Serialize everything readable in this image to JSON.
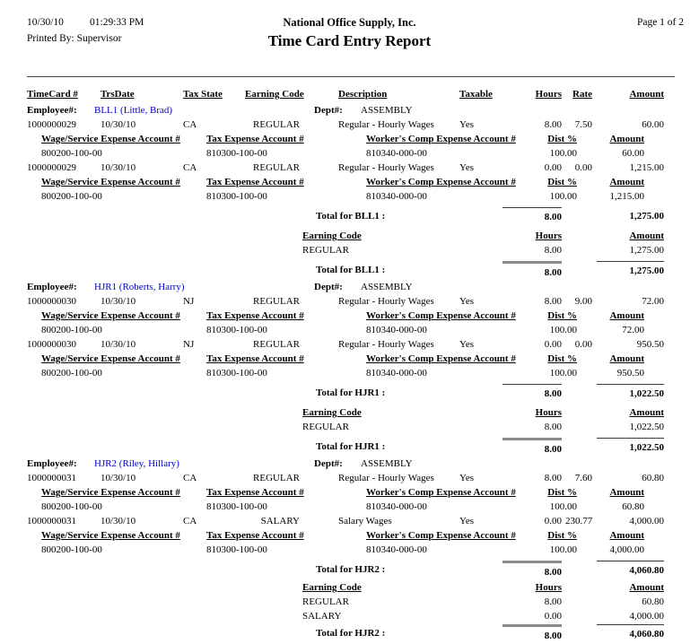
{
  "page": {
    "date": "10/30/10",
    "time": "01:29:33 PM",
    "printed_by": "Printed By: Supervisor",
    "company": "National Office Supply, Inc.",
    "title": "Time Card Entry Report",
    "page_label": "Page 1 of 2"
  },
  "colors": {
    "link_blue": "#0000cc",
    "thick_rule_gray": "#8c8c8c"
  },
  "table": {
    "employee_label": "Employee#:",
    "dept_label": "Dept#:",
    "columns": {
      "timecard": "TimeCard #",
      "trsdate": "TrsDate",
      "tax_state": "Tax State",
      "earning_code": "Earning Code",
      "description": "Description",
      "taxable": "Taxable",
      "hours": "Hours",
      "rate": "Rate",
      "amount": "Amount"
    },
    "sub_columns": {
      "wage": "Wage/Service Expense Account #",
      "tax": "Tax Expense Account #",
      "comp": "Worker's Comp Expense Account #",
      "dist": "Dist %",
      "amount": "Amount"
    },
    "summary_columns": {
      "earning_code": "Earning Code",
      "hours": "Hours",
      "amount": "Amount"
    }
  },
  "employees": [
    {
      "code": "BLL1 (Little, Brad)",
      "dept": "ASSEMBLY",
      "entries": [
        {
          "timecard": "1000000029",
          "trsdate": "10/30/10",
          "tax_state": "CA",
          "earning_code": "REGULAR",
          "description": "Regular - Hourly Wages",
          "taxable": "Yes",
          "hours": "8.00",
          "rate": "7.50",
          "amount": "60.00",
          "wage_account": "800200-100-00",
          "tax_account": "810300-100-00",
          "comp_account": "810340-000-00",
          "dist_pct": "100.00",
          "dist_amount": "60.00"
        },
        {
          "timecard": "1000000029",
          "trsdate": "10/30/10",
          "tax_state": "CA",
          "earning_code": "REGULAR",
          "description": "Regular - Hourly Wages",
          "taxable": "Yes",
          "hours": "0.00",
          "rate": "0.00",
          "amount": "1,215.00",
          "wage_account": "800200-100-00",
          "tax_account": "810300-100-00",
          "comp_account": "810340-000-00",
          "dist_pct": "100.00",
          "dist_amount": "1,215.00"
        }
      ],
      "total_label": "Total for BLL1 :",
      "total_hours": "8.00",
      "total_amount": "1,275.00",
      "summary": [
        {
          "earning_code": "REGULAR",
          "hours": "8.00",
          "amount": "1,275.00"
        }
      ],
      "first_total_rules": {
        "hours": "thin",
        "amount": "none"
      },
      "final_total_rules": {
        "hours": "thick",
        "amount": "thin"
      }
    },
    {
      "code": "HJR1 (Roberts, Harry)",
      "dept": "ASSEMBLY",
      "entries": [
        {
          "timecard": "1000000030",
          "trsdate": "10/30/10",
          "tax_state": "NJ",
          "earning_code": "REGULAR",
          "description": "Regular - Hourly Wages",
          "taxable": "Yes",
          "hours": "8.00",
          "rate": "9.00",
          "amount": "72.00",
          "wage_account": "800200-100-00",
          "tax_account": "810300-100-00",
          "comp_account": "810340-000-00",
          "dist_pct": "100.00",
          "dist_amount": "72.00"
        },
        {
          "timecard": "1000000030",
          "trsdate": "10/30/10",
          "tax_state": "NJ",
          "earning_code": "REGULAR",
          "description": "Regular - Hourly Wages",
          "taxable": "Yes",
          "hours": "0.00",
          "rate": "0.00",
          "amount": "950.50",
          "wage_account": "800200-100-00",
          "tax_account": "810300-100-00",
          "comp_account": "810340-000-00",
          "dist_pct": "100.00",
          "dist_amount": "950.50"
        }
      ],
      "total_label": "Total for HJR1 :",
      "total_hours": "8.00",
      "total_amount": "1,022.50",
      "summary": [
        {
          "earning_code": "REGULAR",
          "hours": "8.00",
          "amount": "1,022.50"
        }
      ],
      "first_total_rules": {
        "hours": "thin",
        "amount": "thin"
      },
      "final_total_rules": {
        "hours": "thick",
        "amount": "thin"
      }
    },
    {
      "code": "HJR2 (Riley, Hillary)",
      "dept": "ASSEMBLY",
      "entries": [
        {
          "timecard": "1000000031",
          "trsdate": "10/30/10",
          "tax_state": "CA",
          "earning_code": "REGULAR",
          "description": "Regular - Hourly Wages",
          "taxable": "Yes",
          "hours": "8.00",
          "rate": "7.60",
          "amount": "60.80",
          "wage_account": "800200-100-00",
          "tax_account": "810300-100-00",
          "comp_account": "810340-000-00",
          "dist_pct": "100.00",
          "dist_amount": "60.80"
        },
        {
          "timecard": "1000000031",
          "trsdate": "10/30/10",
          "tax_state": "CA",
          "earning_code": "SALARY",
          "description": "Salary Wages",
          "taxable": "Yes",
          "hours": "0.00",
          "rate": "230.77",
          "amount": "4,000.00",
          "wage_account": "800200-100-00",
          "tax_account": "810300-100-00",
          "comp_account": "810340-000-00",
          "dist_pct": "100.00",
          "dist_amount": "4,000.00"
        }
      ],
      "total_label": "Total for HJR2 :",
      "total_hours": "8.00",
      "total_amount": "4,060.80",
      "summary": [
        {
          "earning_code": "REGULAR",
          "hours": "8.00",
          "amount": "60.80"
        },
        {
          "earning_code": "SALARY",
          "hours": "0.00",
          "amount": "4,000.00"
        }
      ],
      "first_total_rules": {
        "hours": "thick",
        "amount": "thin"
      },
      "final_total_rules": {
        "hours": "thick",
        "amount": "thin"
      }
    }
  ]
}
